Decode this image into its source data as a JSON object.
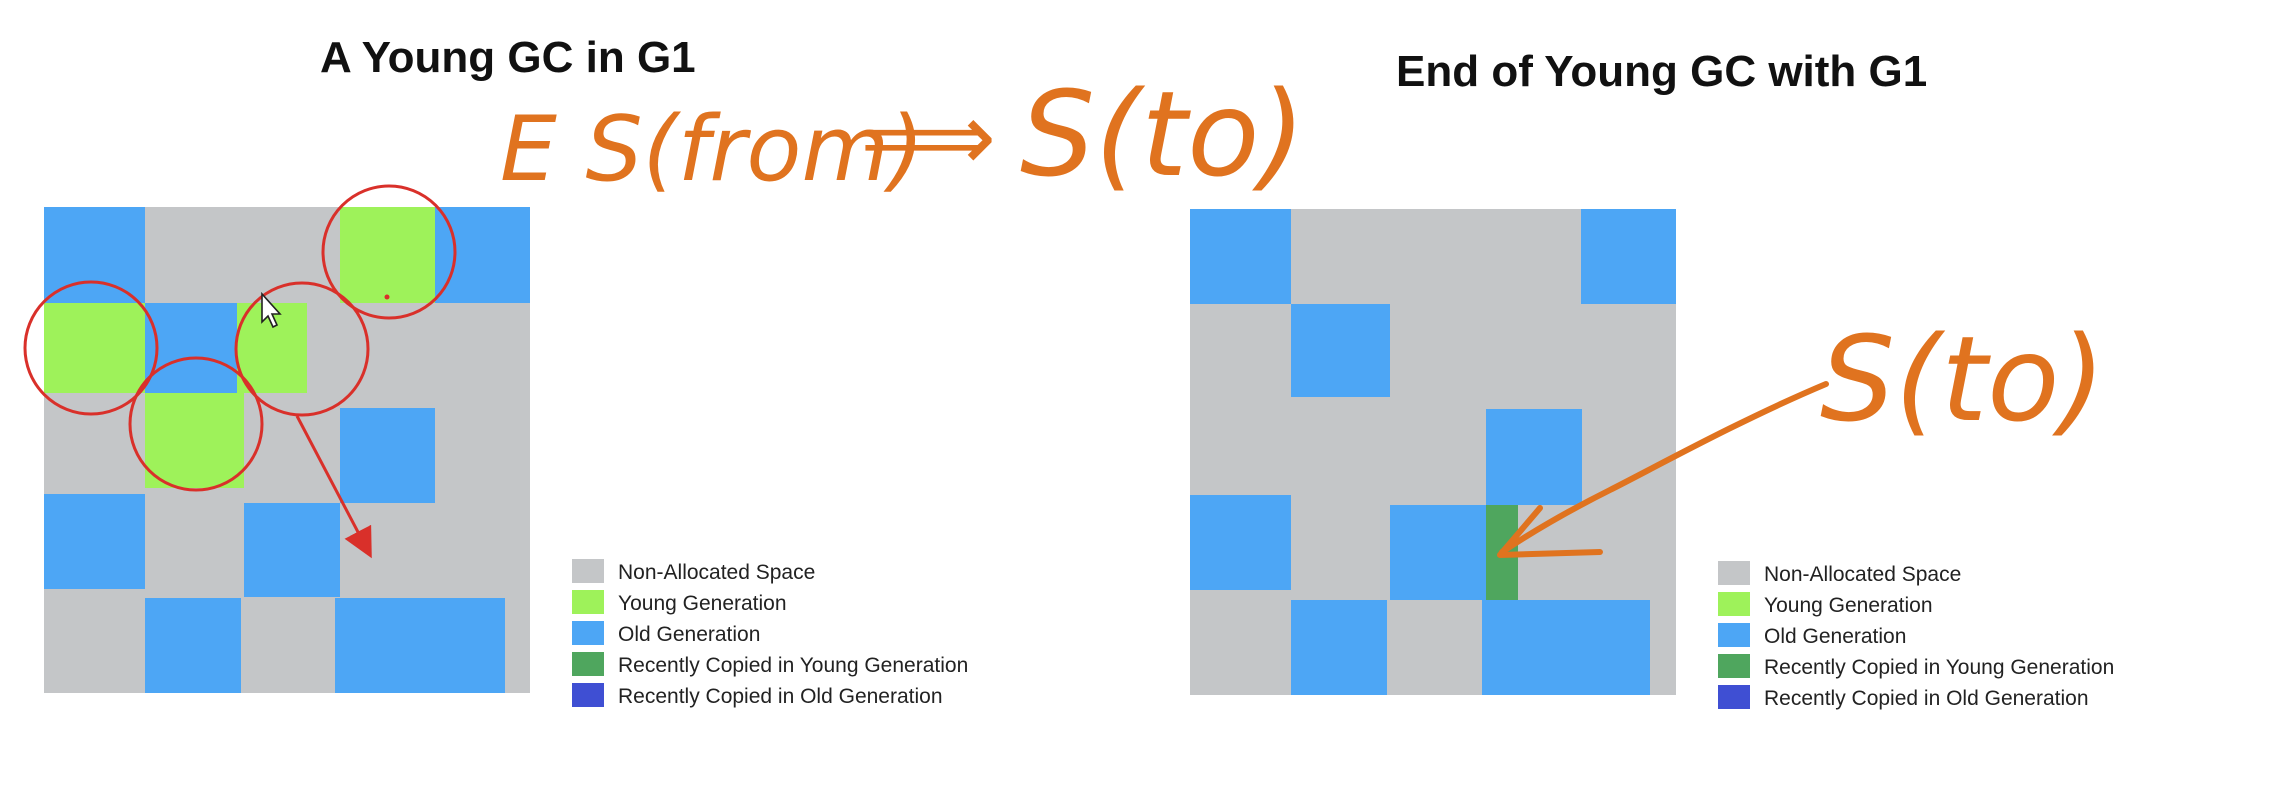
{
  "left_panel": {
    "title": "A Young GC in G1",
    "annotation": {
      "sources": "E  S(from)",
      "arrow": "⟹",
      "target": "S(to)"
    }
  },
  "right_panel": {
    "title": "End of Young GC with G1",
    "annotation": {
      "target": "S(to)"
    }
  },
  "legend": [
    {
      "label": "Non-Allocated Space",
      "color": "#c4c6c8"
    },
    {
      "label": "Young Generation",
      "color": "#9ef25a"
    },
    {
      "label": "Old Generation",
      "color": "#4da6f5"
    },
    {
      "label": "Recently Copied in Young Generation",
      "color": "#4fa65e"
    },
    {
      "label": "Recently Copied in Old Generation",
      "color": "#3f4fd3"
    }
  ],
  "colors": {
    "background_grid": "#c4c6c8",
    "annotation_orange": "#e0731f",
    "highlight_red": "#d9302a",
    "cursor": "white-arrow-pointer"
  }
}
